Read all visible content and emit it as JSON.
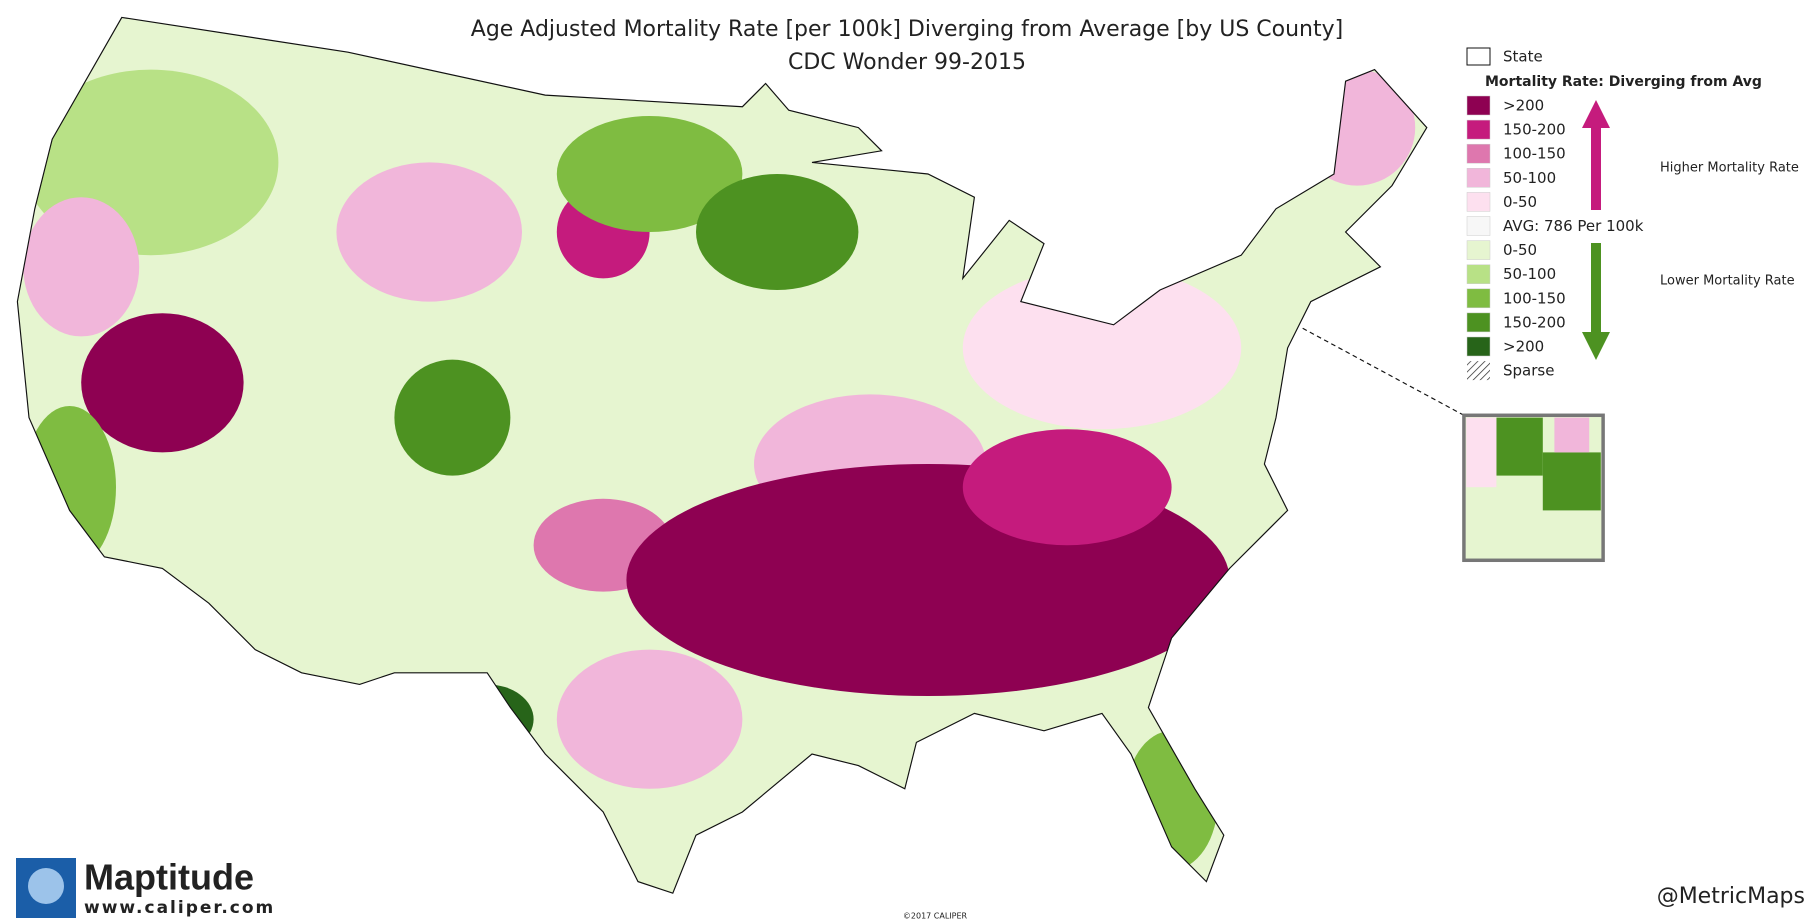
{
  "header": {
    "title": "Age Adjusted Mortality Rate [per 100k] Diverging from Average [by US County]",
    "subtitle": "CDC Wonder 99-2015"
  },
  "legend": {
    "state_label": "State",
    "title": "Mortality Rate: Diverging from Avg",
    "items": [
      {
        "label": ">200",
        "color": "#8e0152"
      },
      {
        "label": "150-200",
        "color": "#c51b7d"
      },
      {
        "label": "100-150",
        "color": "#de77ae"
      },
      {
        "label": "50-100",
        "color": "#f1b6da"
      },
      {
        "label": "0-50",
        "color": "#fde0ef"
      },
      {
        "label": "AVG: 786 Per 100k",
        "color": "#f7f7f7"
      },
      {
        "label": "0-50",
        "color": "#e6f5d0"
      },
      {
        "label": "50-100",
        "color": "#b8e186"
      },
      {
        "label": "100-150",
        "color": "#7fbc41"
      },
      {
        "label": "150-200",
        "color": "#4d9221"
      },
      {
        "label": ">200",
        "color": "#276419"
      }
    ],
    "sparse": "Sparse",
    "higher": "Higher Mortality Rate",
    "lower": "Lower Mortality Rate"
  },
  "footer": {
    "logo": "Maptitude",
    "url": "www.caliper.com",
    "copyright": "©2017 CALIPER",
    "credit": "@MetricMaps"
  }
}
